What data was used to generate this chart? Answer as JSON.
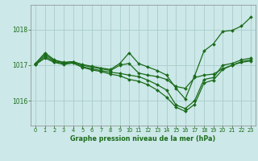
{
  "title": "Graphe pression niveau de la mer (hPa)",
  "bg_color": "#cce8e8",
  "grid_color": "#aacccc",
  "line_color": "#1a6b1a",
  "xlim": [
    -0.5,
    23.5
  ],
  "ylim": [
    1015.3,
    1018.7
  ],
  "yticks": [
    1016,
    1017,
    1018
  ],
  "xticks": [
    0,
    1,
    2,
    3,
    4,
    5,
    6,
    7,
    8,
    9,
    10,
    11,
    12,
    13,
    14,
    15,
    16,
    17,
    18,
    19,
    20,
    21,
    22,
    23
  ],
  "series": [
    [
      1017.05,
      1017.35,
      1017.15,
      1017.08,
      1017.1,
      1017.02,
      1016.97,
      1016.92,
      1016.88,
      1017.05,
      1017.35,
      1017.05,
      1016.95,
      1016.85,
      1016.72,
      1016.35,
      1016.05,
      1016.7,
      1017.4,
      1017.6,
      1017.95,
      1017.98,
      1018.1,
      1018.35
    ],
    [
      1017.05,
      1017.3,
      1017.13,
      1017.07,
      1017.1,
      1017.0,
      1016.95,
      1016.9,
      1016.85,
      1017.0,
      1017.05,
      1016.78,
      1016.72,
      1016.68,
      1016.6,
      1016.4,
      1016.35,
      1016.65,
      1016.72,
      1016.75,
      1016.9,
      1017.0,
      1017.1,
      1017.15
    ],
    [
      1017.03,
      1017.25,
      1017.1,
      1017.05,
      1017.08,
      1016.96,
      1016.9,
      1016.85,
      1016.8,
      1016.77,
      1016.72,
      1016.68,
      1016.58,
      1016.45,
      1016.3,
      1015.88,
      1015.78,
      1016.0,
      1016.6,
      1016.65,
      1017.0,
      1017.05,
      1017.15,
      1017.2
    ],
    [
      1017.02,
      1017.2,
      1017.08,
      1017.02,
      1017.06,
      1016.94,
      1016.87,
      1016.82,
      1016.75,
      1016.7,
      1016.6,
      1016.55,
      1016.45,
      1016.3,
      1016.1,
      1015.82,
      1015.7,
      1015.9,
      1016.5,
      1016.58,
      1016.88,
      1017.0,
      1017.08,
      1017.12
    ]
  ]
}
